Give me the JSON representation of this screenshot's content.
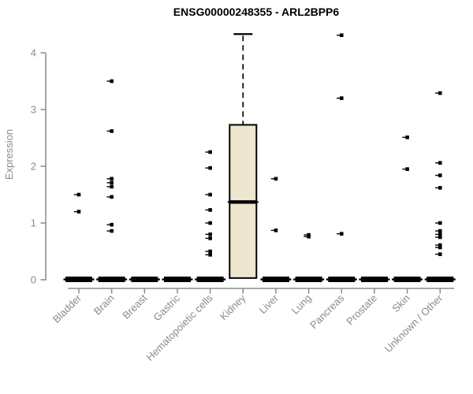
{
  "chart_data": {
    "type": "boxplot",
    "title": "ENSG00000248355 - ARL2BPP6",
    "ylabel": "Expression",
    "xlabel": "",
    "ylim": [
      0,
      4.4
    ],
    "yticks": [
      0,
      1,
      2,
      3,
      4
    ],
    "grid": false,
    "legend": null,
    "categories": [
      "Bladder",
      "Brain",
      "Breast",
      "Gastric",
      "Hematopoietic cells",
      "Kidney",
      "Liver",
      "Lung",
      "Pancreas",
      "Prostate",
      "Skin",
      "Unknown / Other"
    ],
    "series": [
      {
        "category": "Bladder",
        "whisker_low": 0,
        "q1": 0,
        "median": 0,
        "q3": 0,
        "whisker_high": 0,
        "outliers": [
          1.5,
          1.2
        ]
      },
      {
        "category": "Brain",
        "whisker_low": 0,
        "q1": 0,
        "median": 0,
        "q3": 0,
        "whisker_high": 0,
        "outliers": [
          3.5,
          2.62,
          1.78,
          1.71,
          1.64,
          1.46,
          0.97,
          0.86
        ]
      },
      {
        "category": "Breast",
        "whisker_low": 0,
        "q1": 0,
        "median": 0,
        "q3": 0,
        "whisker_high": 0,
        "outliers": []
      },
      {
        "category": "Gastric",
        "whisker_low": 0,
        "q1": 0,
        "median": 0,
        "q3": 0,
        "whisker_high": 0,
        "outliers": []
      },
      {
        "category": "Hematopoietic cells",
        "whisker_low": 0,
        "q1": 0,
        "median": 0,
        "q3": 0,
        "whisker_high": 0,
        "outliers": [
          2.25,
          1.97,
          1.5,
          1.23,
          1.0,
          0.8,
          0.73,
          0.5,
          0.44
        ]
      },
      {
        "category": "Kidney",
        "whisker_low": 0,
        "q1": 0,
        "median": 1.37,
        "q3": 2.73,
        "whisker_high": 4.33,
        "outliers": []
      },
      {
        "category": "Liver",
        "whisker_low": 0,
        "q1": 0,
        "median": 0,
        "q3": 0,
        "whisker_high": 0,
        "outliers": [
          1.78,
          0.87
        ]
      },
      {
        "category": "Lung",
        "whisker_low": 0,
        "q1": 0,
        "median": 0,
        "q3": 0,
        "whisker_high": 0,
        "outliers": [
          0.79,
          0.76
        ]
      },
      {
        "category": "Pancreas",
        "whisker_low": 0,
        "q1": 0,
        "median": 0,
        "q3": 0,
        "whisker_high": 0,
        "outliers": [
          4.31,
          3.2,
          0.81
        ]
      },
      {
        "category": "Prostate",
        "whisker_low": 0,
        "q1": 0,
        "median": 0,
        "q3": 0,
        "whisker_high": 0,
        "outliers": []
      },
      {
        "category": "Skin",
        "whisker_low": 0,
        "q1": 0,
        "median": 0,
        "q3": 0,
        "whisker_high": 0,
        "outliers": [
          2.51,
          1.95
        ]
      },
      {
        "category": "Unknown / Other",
        "whisker_low": 0,
        "q1": 0,
        "median": 0,
        "q3": 0,
        "whisker_high": 0,
        "outliers": [
          3.29,
          2.06,
          1.84,
          1.62,
          1.0,
          0.86,
          0.8,
          0.75,
          0.61,
          0.57,
          0.45
        ]
      }
    ],
    "colors": {
      "box_fill": "#EDE7CF",
      "box_border": "#000000",
      "outlier": "#000000",
      "axis_text": "#8B8B8B",
      "title_text": "#000000"
    }
  }
}
